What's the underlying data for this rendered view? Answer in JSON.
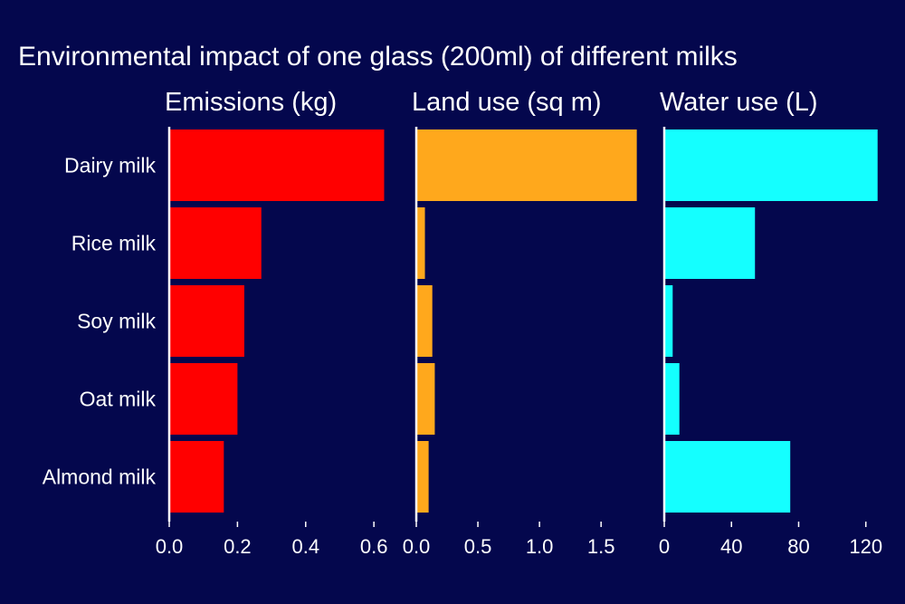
{
  "chart_data": {
    "type": "bar",
    "orientation": "horizontal",
    "title": "Environmental impact of one glass (200ml) of different milks",
    "categories": [
      "Dairy milk",
      "Rice milk",
      "Soy milk",
      "Oat milk",
      "Almond milk"
    ],
    "colors": {
      "background": "#04074d",
      "text": "#ffffff",
      "axis": "#ffffff"
    },
    "panels": [
      {
        "key": "emissions",
        "title": "Emissions (kg)",
        "color": "#ff0000",
        "xlim": [
          0,
          0.65
        ],
        "ticks": [
          0.0,
          0.2,
          0.4,
          0.6
        ],
        "tick_labels": [
          "0.0",
          "0.2",
          "0.4",
          "0.6"
        ],
        "values": [
          0.63,
          0.27,
          0.22,
          0.2,
          0.16
        ]
      },
      {
        "key": "land_use",
        "title": "Land use (sq m)",
        "color": "#ffa81c",
        "xlim": [
          0,
          1.8
        ],
        "ticks": [
          0.0,
          0.5,
          1.0,
          1.5
        ],
        "tick_labels": [
          "0.0",
          "0.5",
          "1.0",
          "1.5"
        ],
        "values": [
          1.79,
          0.07,
          0.13,
          0.15,
          0.1
        ]
      },
      {
        "key": "water_use",
        "title": "Water use (L)",
        "color": "#14ffff",
        "xlim": [
          0,
          132
        ],
        "ticks": [
          0,
          40,
          80,
          120
        ],
        "tick_labels": [
          "0",
          "40",
          "80",
          "120"
        ],
        "values": [
          127,
          54,
          5,
          9,
          75
        ]
      }
    ]
  }
}
